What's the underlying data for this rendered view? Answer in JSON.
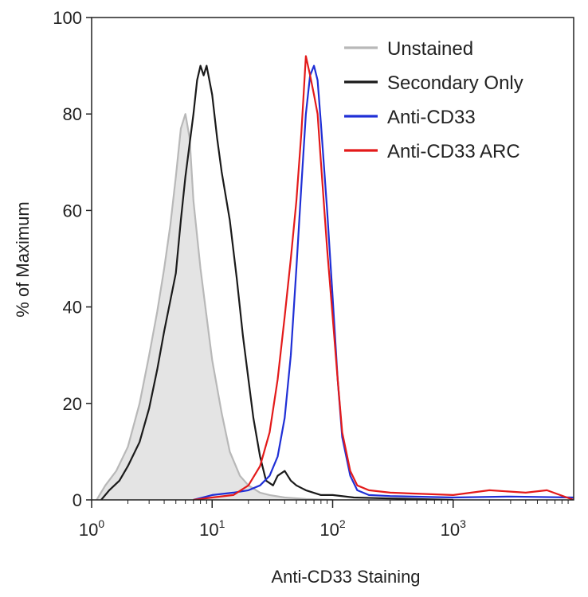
{
  "chart_data": {
    "type": "line",
    "title": "",
    "xlabel": "Anti-CD33 Staining",
    "ylabel": "% of Maximum",
    "xscale": "log",
    "xlim": [
      1,
      10000
    ],
    "ylim": [
      0,
      100
    ],
    "yticks": [
      {
        "value": 0,
        "label": "0"
      },
      {
        "value": 20,
        "label": "20"
      },
      {
        "value": 40,
        "label": "40"
      },
      {
        "value": 60,
        "label": "60"
      },
      {
        "value": 80,
        "label": "80"
      },
      {
        "value": 100,
        "label": "100"
      }
    ],
    "xticks": [
      {
        "value": 1,
        "base": "10",
        "exp": "0"
      },
      {
        "value": 10,
        "base": "10",
        "exp": "1"
      },
      {
        "value": 100,
        "base": "10",
        "exp": "2"
      },
      {
        "value": 1000,
        "base": "10",
        "exp": "3"
      }
    ],
    "legend_position": "top-right",
    "series": [
      {
        "name": "Unstained",
        "color": "#b8b8b8",
        "fill": "#e4e4e4",
        "points": [
          [
            1.1,
            0
          ],
          [
            1.3,
            3
          ],
          [
            1.6,
            6
          ],
          [
            2.0,
            11
          ],
          [
            2.5,
            20
          ],
          [
            3.0,
            30
          ],
          [
            3.5,
            39
          ],
          [
            4.0,
            48
          ],
          [
            4.5,
            57
          ],
          [
            5.0,
            67
          ],
          [
            5.5,
            77
          ],
          [
            6.0,
            80
          ],
          [
            6.5,
            75
          ],
          [
            7.0,
            62
          ],
          [
            8.0,
            48
          ],
          [
            9.0,
            38
          ],
          [
            10.0,
            29
          ],
          [
            12.0,
            18
          ],
          [
            14.0,
            10
          ],
          [
            17.0,
            5
          ],
          [
            20.0,
            3
          ],
          [
            25.0,
            1.5
          ],
          [
            30.0,
            1
          ],
          [
            40.0,
            0.5
          ],
          [
            60.0,
            0.2
          ],
          [
            100.0,
            0
          ]
        ]
      },
      {
        "name": "Secondary Only",
        "color": "#1a1a1a",
        "points": [
          [
            1.2,
            0
          ],
          [
            1.4,
            2
          ],
          [
            1.7,
            4
          ],
          [
            2.0,
            7
          ],
          [
            2.5,
            12
          ],
          [
            3.0,
            19
          ],
          [
            3.5,
            27
          ],
          [
            4.0,
            35
          ],
          [
            5.0,
            47
          ],
          [
            5.5,
            58
          ],
          [
            6.0,
            67
          ],
          [
            7.0,
            80
          ],
          [
            7.5,
            87
          ],
          [
            8.0,
            90
          ],
          [
            8.5,
            88
          ],
          [
            9.0,
            90
          ],
          [
            10.0,
            84
          ],
          [
            11.0,
            75
          ],
          [
            12.0,
            68
          ],
          [
            14.0,
            58
          ],
          [
            16.0,
            46
          ],
          [
            18.0,
            34
          ],
          [
            20.0,
            25
          ],
          [
            22.0,
            17
          ],
          [
            25.0,
            9
          ],
          [
            28.0,
            4
          ],
          [
            32.0,
            3
          ],
          [
            35.0,
            5
          ],
          [
            40.0,
            6
          ],
          [
            45.0,
            4
          ],
          [
            50.0,
            3
          ],
          [
            60.0,
            2
          ],
          [
            80.0,
            1
          ],
          [
            100.0,
            1
          ],
          [
            150.0,
            0.5
          ],
          [
            300.0,
            0.3
          ],
          [
            1000.0,
            0
          ]
        ]
      },
      {
        "name": "Anti-CD33",
        "color": "#1f2fd6",
        "points": [
          [
            7.0,
            0
          ],
          [
            10.0,
            1
          ],
          [
            15.0,
            1.5
          ],
          [
            20.0,
            2
          ],
          [
            25.0,
            3
          ],
          [
            30.0,
            5
          ],
          [
            35.0,
            9
          ],
          [
            40.0,
            17
          ],
          [
            45.0,
            30
          ],
          [
            50.0,
            48
          ],
          [
            55.0,
            65
          ],
          [
            60.0,
            80
          ],
          [
            65.0,
            88
          ],
          [
            70.0,
            90
          ],
          [
            75.0,
            87
          ],
          [
            80.0,
            78
          ],
          [
            90.0,
            60
          ],
          [
            100.0,
            42
          ],
          [
            110.0,
            25
          ],
          [
            120.0,
            13
          ],
          [
            140.0,
            5
          ],
          [
            160.0,
            2
          ],
          [
            200.0,
            1
          ],
          [
            300.0,
            0.8
          ],
          [
            1000.0,
            0.5
          ],
          [
            3000.0,
            0.7
          ],
          [
            10000.0,
            0.5
          ]
        ]
      },
      {
        "name": "Anti-CD33 ARC",
        "color": "#e31a1a",
        "points": [
          [
            7.0,
            0
          ],
          [
            10.0,
            0.5
          ],
          [
            15.0,
            1
          ],
          [
            20.0,
            3
          ],
          [
            25.0,
            7
          ],
          [
            30.0,
            14
          ],
          [
            35.0,
            25
          ],
          [
            40.0,
            38
          ],
          [
            45.0,
            50
          ],
          [
            50.0,
            62
          ],
          [
            55.0,
            76
          ],
          [
            60.0,
            92
          ],
          [
            65.0,
            88
          ],
          [
            70.0,
            84
          ],
          [
            75.0,
            80
          ],
          [
            80.0,
            70
          ],
          [
            90.0,
            52
          ],
          [
            100.0,
            38
          ],
          [
            110.0,
            25
          ],
          [
            120.0,
            14
          ],
          [
            140.0,
            6
          ],
          [
            160.0,
            3
          ],
          [
            200.0,
            2
          ],
          [
            300.0,
            1.5
          ],
          [
            1000.0,
            1
          ],
          [
            2000.0,
            2
          ],
          [
            4000.0,
            1.5
          ],
          [
            6000.0,
            2
          ],
          [
            10000.0,
            0
          ]
        ]
      }
    ]
  }
}
